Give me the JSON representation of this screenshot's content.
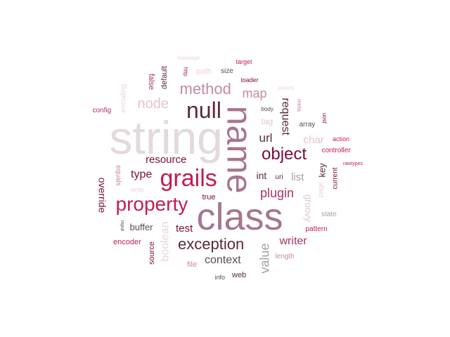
{
  "words": [
    {
      "text": "string",
      "color": "#e3dadd",
      "size": 66,
      "rot": 0
    },
    {
      "text": "class",
      "color": "#a87590",
      "size": 54,
      "rot": 0
    },
    {
      "text": "name",
      "color": "#a87590",
      "size": 50,
      "rot": 90
    },
    {
      "text": "grails",
      "color": "#c41c4f",
      "size": 34,
      "rot": 0
    },
    {
      "text": "property",
      "color": "#c41c4f",
      "size": 28,
      "rot": 0
    },
    {
      "text": "null",
      "color": "#5a2a3a",
      "size": 32,
      "rot": 0
    },
    {
      "text": "object",
      "color": "#7a0d3c",
      "size": 24,
      "rot": 0
    },
    {
      "text": "method",
      "color": "#c48aa8",
      "size": 22,
      "rot": 0
    },
    {
      "text": "exception",
      "color": "#5a2a3a",
      "size": 22,
      "rot": 0
    },
    {
      "text": "node",
      "color": "#e3c4d2",
      "size": 20,
      "rot": 0
    },
    {
      "text": "map",
      "color": "#c48aa8",
      "size": 18,
      "rot": 0
    },
    {
      "text": "plugin",
      "color": "#a8326a",
      "size": 18,
      "rot": 0
    },
    {
      "text": "value",
      "color": "#a8a0a4",
      "size": 18,
      "rot": 270
    },
    {
      "text": "url",
      "color": "#5a2a3a",
      "size": 17,
      "rot": 0
    },
    {
      "text": "request",
      "color": "#5a2a3a",
      "size": 16,
      "rot": 90
    },
    {
      "text": "context",
      "color": "#5a4a4f",
      "size": 16,
      "rot": 0
    },
    {
      "text": "writer",
      "color": "#a8326a",
      "size": 16,
      "rot": 0
    },
    {
      "text": "boolean",
      "color": "#ecd4dc",
      "size": 16,
      "rot": 270
    },
    {
      "text": "type",
      "color": "#7a0d3c",
      "size": 16,
      "rot": 0
    },
    {
      "text": "resource",
      "color": "#7a0d3c",
      "size": 15,
      "rot": 0
    },
    {
      "text": "test",
      "color": "#7a0d3c",
      "size": 15,
      "rot": 0
    },
    {
      "text": "char",
      "color": "#e3c4d2",
      "size": 15,
      "rot": 0
    },
    {
      "text": "list",
      "color": "#a8a0a4",
      "size": 15,
      "rot": 0
    },
    {
      "text": "int",
      "color": "#5a2a3a",
      "size": 14,
      "rot": 0
    },
    {
      "text": "override",
      "color": "#7a0d3c",
      "size": 14,
      "rot": 90
    },
    {
      "text": "groovy",
      "color": "#e3c4d2",
      "size": 13,
      "rot": 90
    },
    {
      "text": "buffer",
      "color": "#5a4a4f",
      "size": 13,
      "rot": 0
    },
    {
      "text": "key",
      "color": "#5a2a3a",
      "size": 13,
      "rot": 270
    },
    {
      "text": "tag",
      "color": "#e3c4d2",
      "size": 12,
      "rot": 0
    },
    {
      "text": "default",
      "color": "#5a2a3a",
      "size": 11,
      "rot": 270
    },
    {
      "text": "false",
      "color": "#a8326a",
      "size": 11,
      "rot": 90
    },
    {
      "text": "encoder",
      "color": "#c41c4f",
      "size": 11,
      "rot": 0
    },
    {
      "text": "source",
      "color": "#7a0d3c",
      "size": 11,
      "rot": 270
    },
    {
      "text": "true",
      "color": "#7a0d3c",
      "size": 11,
      "rot": 0
    },
    {
      "text": "file",
      "color": "#c48aa8",
      "size": 11,
      "rot": 0
    },
    {
      "text": "web",
      "color": "#5a2a3a",
      "size": 11,
      "rot": 0
    },
    {
      "text": "path",
      "color": "#ecd4dc",
      "size": 11,
      "rot": 0
    },
    {
      "text": "size",
      "color": "#5a4a4f",
      "size": 10,
      "rot": 0
    },
    {
      "text": "array",
      "color": "#5a4a4f",
      "size": 10,
      "rot": 0
    },
    {
      "text": "controller",
      "color": "#c41c4f",
      "size": 10,
      "rot": 0
    },
    {
      "text": "equals",
      "color": "#c48aa8",
      "size": 10,
      "rot": 90
    },
    {
      "text": "current",
      "color": "#7a0d3c",
      "size": 10,
      "rot": 270
    },
    {
      "text": "page",
      "color": "#ecd4dc",
      "size": 10,
      "rot": 270
    },
    {
      "text": "state",
      "color": "#a8a0a4",
      "size": 10,
      "rot": 0
    },
    {
      "text": "pattern",
      "color": "#c41c4f",
      "size": 10,
      "rot": 0
    },
    {
      "text": "length",
      "color": "#c48aa8",
      "size": 10,
      "rot": 0
    },
    {
      "text": "uri",
      "color": "#5a2a3a",
      "size": 10,
      "rot": 0
    },
    {
      "text": "config",
      "color": "#a8326a",
      "size": 10,
      "rot": 0
    },
    {
      "text": "encoding",
      "color": "#ecd4dc",
      "size": 10,
      "rot": 270
    },
    {
      "text": "target",
      "color": "#c41c4f",
      "size": 9,
      "rot": 0
    },
    {
      "text": "loader",
      "color": "#7a0d3c",
      "size": 9,
      "rot": 0
    },
    {
      "text": "action",
      "color": "#c41c4f",
      "size": 9,
      "rot": 0
    },
    {
      "text": "write",
      "color": "#ecd4dc",
      "size": 9,
      "rot": 0
    },
    {
      "text": "info",
      "color": "#5a4a4f",
      "size": 9,
      "rot": 0
    },
    {
      "text": "message",
      "color": "#ecd4dc",
      "size": 8,
      "rot": 0
    },
    {
      "text": "http",
      "color": "#a8326a",
      "size": 8,
      "rot": 90
    },
    {
      "text": "meta",
      "color": "#c48aa8",
      "size": 8,
      "rot": 90
    },
    {
      "text": "parent",
      "color": "#ecd4dc",
      "size": 8,
      "rot": 0
    },
    {
      "text": "body",
      "color": "#5a4a4f",
      "size": 8,
      "rot": 0
    },
    {
      "text": "json",
      "color": "#7a0d3c",
      "size": 8,
      "rot": 270
    },
    {
      "text": "rawtypes",
      "color": "#c41c4f",
      "size": 7,
      "rot": 0
    },
    {
      "text": "input",
      "color": "#5a4a4f",
      "size": 7,
      "rot": 90
    }
  ]
}
